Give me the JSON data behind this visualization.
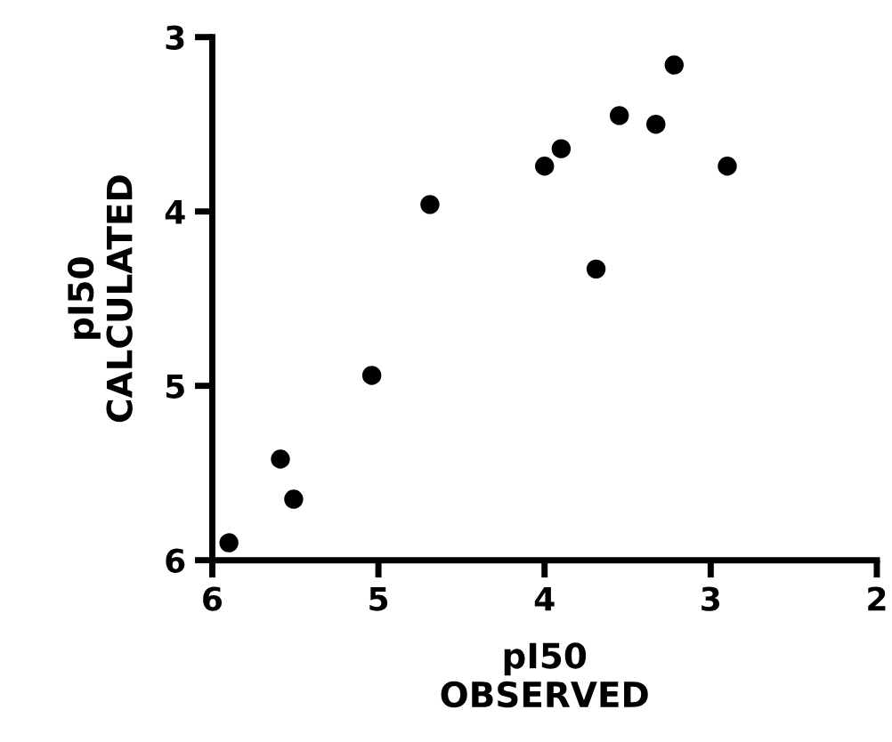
{
  "chart_data": {
    "type": "scatter",
    "xlabel": "pI50\nOBSERVED",
    "ylabel": "pI50\nCALCULATED",
    "x": [
      5.9,
      5.59,
      5.51,
      5.04,
      4.69,
      4.0,
      3.9,
      3.69,
      3.55,
      3.33,
      3.22,
      2.9
    ],
    "series": [
      {
        "color": "#000000",
        "values": [
          5.9,
          5.42,
          5.65,
          4.94,
          3.96,
          3.74,
          3.64,
          4.33,
          3.45,
          3.5,
          3.16,
          3.74
        ]
      }
    ],
    "xlim": [
      6,
      2
    ],
    "ylim": [
      6,
      3
    ],
    "xticks": [
      6,
      5,
      4,
      3,
      2
    ],
    "yticks": [
      6,
      5,
      4,
      3
    ],
    "marker": "circle",
    "grid": false,
    "legend": false
  }
}
